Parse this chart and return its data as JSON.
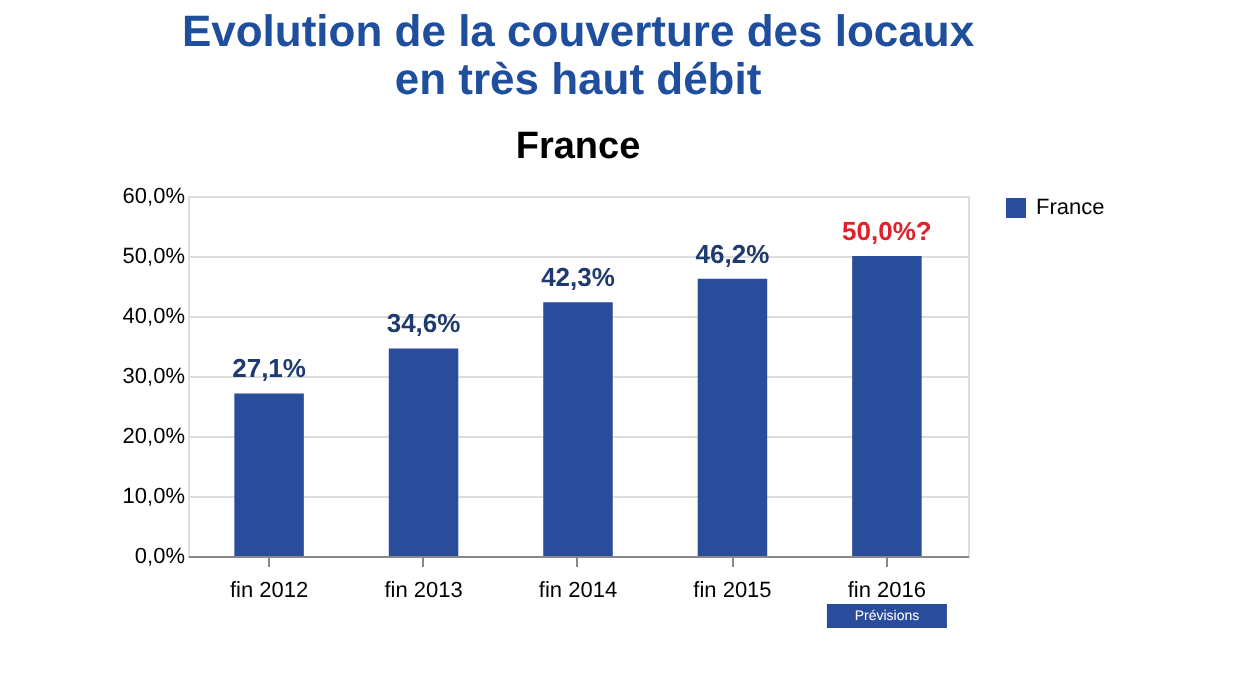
{
  "chart_data": {
    "type": "bar",
    "title": "Evolution de la couverture des locaux\nen très haut débit",
    "subtitle": "France",
    "categories": [
      "fin 2012",
      "fin 2013",
      "fin 2014",
      "fin 2015",
      "fin 2016"
    ],
    "series": [
      {
        "name": "France",
        "color": "#2a4d9b",
        "values": [
          27.1,
          34.6,
          42.3,
          46.2,
          50.0
        ]
      }
    ],
    "value_labels": [
      "27,1%",
      "34,6%",
      "42,3%",
      "46,2%",
      "50,0%?"
    ],
    "annotations": [
      "Prévisions"
    ],
    "ylim": [
      0,
      60
    ],
    "yticks": [
      {
        "value": 0,
        "label": "0,0%"
      },
      {
        "value": 10,
        "label": "10,0%"
      },
      {
        "value": 20,
        "label": "20,0%"
      },
      {
        "value": 30,
        "label": "30,0%"
      },
      {
        "value": 40,
        "label": "40,0%"
      },
      {
        "value": 50,
        "label": "50,0%"
      },
      {
        "value": 60,
        "label": "60,0%"
      }
    ],
    "grid": "y",
    "legend": "right"
  }
}
